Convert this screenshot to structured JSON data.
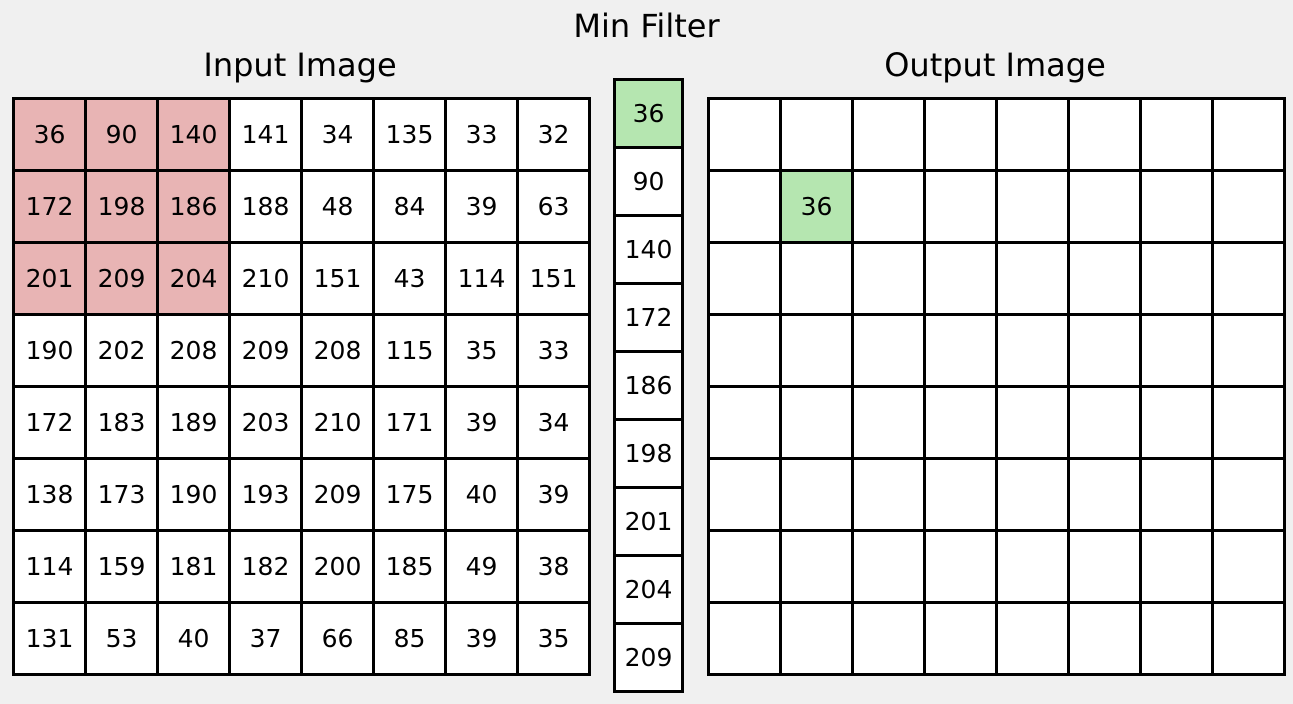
{
  "title": "Min Filter",
  "input": {
    "title": "Input Image",
    "rows": [
      [
        "36",
        "90",
        "140",
        "141",
        "34",
        "135",
        "33",
        "32"
      ],
      [
        "172",
        "198",
        "186",
        "188",
        "48",
        "84",
        "39",
        "63"
      ],
      [
        "201",
        "209",
        "204",
        "210",
        "151",
        "43",
        "114",
        "151"
      ],
      [
        "190",
        "202",
        "208",
        "209",
        "208",
        "115",
        "35",
        "33"
      ],
      [
        "172",
        "183",
        "189",
        "203",
        "210",
        "171",
        "39",
        "34"
      ],
      [
        "138",
        "173",
        "190",
        "193",
        "209",
        "175",
        "40",
        "39"
      ],
      [
        "114",
        "159",
        "181",
        "182",
        "200",
        "185",
        "49",
        "38"
      ],
      [
        "131",
        "53",
        "40",
        "37",
        "66",
        "85",
        "39",
        "35"
      ]
    ],
    "window": {
      "row_start": 0,
      "row_end": 2,
      "col_start": 0,
      "col_end": 2
    },
    "window_color": "#e8b4b4"
  },
  "sorted": {
    "values": [
      "36",
      "90",
      "140",
      "172",
      "186",
      "198",
      "201",
      "204",
      "209"
    ],
    "highlight_index": 0,
    "highlight_color": "#b5e6b0"
  },
  "output": {
    "title": "Output Image",
    "result_value": "36",
    "result_row": 1,
    "result_col": 1,
    "result_color": "#b5e6b0"
  }
}
